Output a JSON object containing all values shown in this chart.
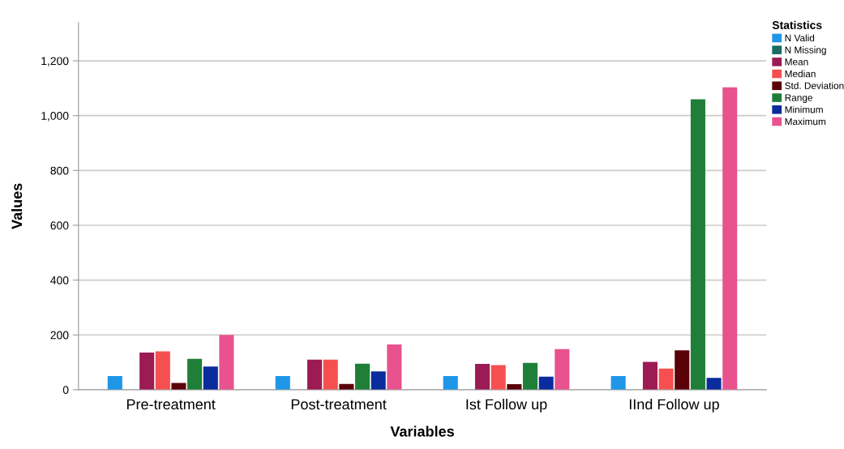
{
  "chart_data": {
    "type": "bar",
    "xlabel": "Variables",
    "ylabel": "Values",
    "legend_title": "Statistics",
    "categories": [
      "Pre-treatment",
      "Post-treatment",
      "Ist Follow up",
      "IInd Follow up"
    ],
    "series": [
      {
        "name": "N Valid",
        "color": "#1f96e8",
        "values": [
          50,
          50,
          50,
          50
        ]
      },
      {
        "name": "N Missing",
        "color": "#1a6b63",
        "values": [
          0,
          0,
          0,
          0
        ]
      },
      {
        "name": "Mean",
        "color": "#9c1b54",
        "values": [
          136,
          110,
          94,
          102
        ]
      },
      {
        "name": "Median",
        "color": "#f5504f",
        "values": [
          140,
          110,
          90,
          77
        ]
      },
      {
        "name": "Std. Deviation",
        "color": "#5a0208",
        "values": [
          25,
          21,
          20,
          144
        ]
      },
      {
        "name": "Range",
        "color": "#1f7f38",
        "values": [
          113,
          95,
          98,
          1060
        ]
      },
      {
        "name": "Minimum",
        "color": "#0a2c9c",
        "values": [
          85,
          67,
          48,
          43
        ]
      },
      {
        "name": "Maximum",
        "color": "#e8538f",
        "values": [
          200,
          165,
          148,
          1103
        ]
      }
    ],
    "ylim": [
      0,
      1340
    ],
    "yticks": [
      {
        "value": 0,
        "label": "0"
      },
      {
        "value": 200,
        "label": "200"
      },
      {
        "value": 400,
        "label": "400"
      },
      {
        "value": 600,
        "label": "600"
      },
      {
        "value": 800,
        "label": "800"
      },
      {
        "value": 1000,
        "label": "1,000"
      },
      {
        "value": 1200,
        "label": "1,200"
      }
    ],
    "grid": "y",
    "legend": "top right"
  }
}
